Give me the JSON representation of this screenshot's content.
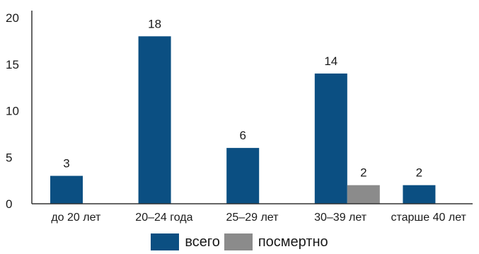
{
  "chart_data": {
    "type": "bar",
    "categories": [
      "до 20 лет",
      "20–24 года",
      "25–29 лет",
      "30–39 лет",
      "старше 40 лет"
    ],
    "series": [
      {
        "name": "всего",
        "values": [
          3,
          18,
          6,
          14,
          2
        ],
        "color": "#0b4f82"
      },
      {
        "name": "посмертно",
        "values": [
          null,
          null,
          null,
          2,
          null
        ],
        "color": "#8b8b8b"
      }
    ],
    "data_labels": [
      [
        "3",
        "18",
        "6",
        "14",
        "2"
      ],
      [
        null,
        null,
        null,
        "2",
        null
      ]
    ],
    "yticks": [
      "0",
      "5",
      "10",
      "15",
      "20"
    ],
    "ylim": [
      0,
      20
    ],
    "grid": false,
    "legend_position": "bottom-center"
  }
}
